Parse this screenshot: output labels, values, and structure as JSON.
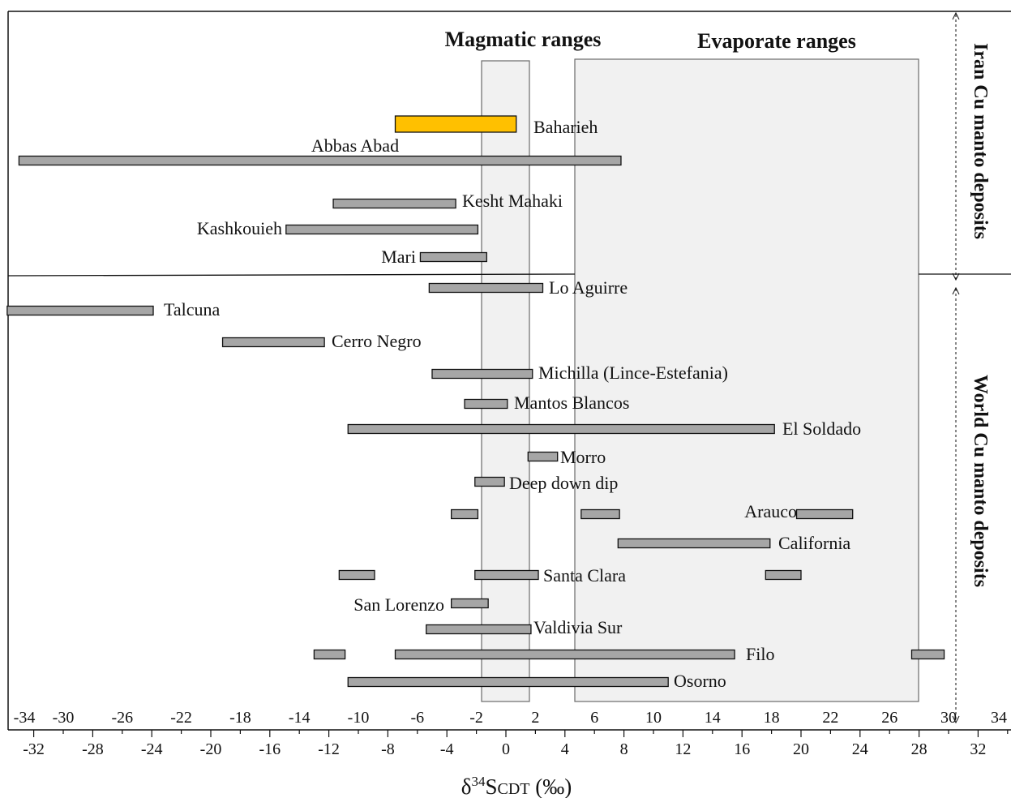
{
  "chart_data": {
    "type": "bar",
    "subtype": "floating-range",
    "xlabel_prefix": "δ",
    "xlabel_sup": "34",
    "xlabel_main": "S",
    "xlabel_sub": "CDT",
    "xlabel_unit": " (‰)",
    "xlim": [
      -34,
      34
    ],
    "upper_ticks": [
      "-34",
      "-30",
      "-26",
      "-22",
      "-18",
      "-14",
      "-10",
      "-6",
      "-2",
      "2",
      "6",
      "10",
      "14",
      "18",
      "22",
      "26",
      "30",
      "34"
    ],
    "lower_ticks": [
      "-32",
      "-28",
      "-24",
      "-20",
      "-16",
      "-12",
      "-8",
      "-4",
      "0",
      "4",
      "8",
      "12",
      "16",
      "20",
      "24",
      "28",
      "32"
    ],
    "shaded_ranges": [
      {
        "label": "Magmatic ranges",
        "from": -1.7,
        "to": 1.6
      },
      {
        "label": "Evaporate ranges",
        "from": 4.7,
        "to": 28.2
      }
    ],
    "groups": [
      {
        "label": "Iran Cu manto deposits"
      },
      {
        "label": "World Cu manto deposits"
      }
    ],
    "colors": {
      "highlight": "#FFC000",
      "bar": "#A6A6A6",
      "shade": "#F1F1F1"
    },
    "series": [
      {
        "name": "Baharieh",
        "group": 0,
        "highlight": true,
        "ranges": [
          [
            -7.5,
            0.7
          ]
        ]
      },
      {
        "name": "Abbas Abad",
        "group": 0,
        "ranges": [
          [
            -33.0,
            7.8
          ]
        ]
      },
      {
        "name": "Kesht Mahaki",
        "group": 0,
        "ranges": [
          [
            -11.7,
            -3.4
          ]
        ]
      },
      {
        "name": "Kashkouieh",
        "group": 0,
        "ranges": [
          [
            -14.9,
            -1.9
          ]
        ]
      },
      {
        "name": "Mari",
        "group": 0,
        "ranges": [
          [
            -5.8,
            -1.3
          ]
        ]
      },
      {
        "name": "Lo Aguirre",
        "group": 1,
        "ranges": [
          [
            -5.2,
            2.5
          ]
        ]
      },
      {
        "name": "Talcuna",
        "group": 1,
        "ranges": [
          [
            -33.8,
            -23.9
          ]
        ]
      },
      {
        "name": "Cerro Negro",
        "group": 1,
        "ranges": [
          [
            -19.2,
            -12.3
          ]
        ]
      },
      {
        "name": "Michilla (Lince-Estefania)",
        "group": 1,
        "ranges": [
          [
            -5.0,
            1.8
          ]
        ]
      },
      {
        "name": "Mantos Blancos",
        "group": 1,
        "ranges": [
          [
            -2.8,
            0.1
          ]
        ]
      },
      {
        "name": "El Soldado",
        "group": 1,
        "ranges": [
          [
            -10.7,
            18.2
          ]
        ]
      },
      {
        "name": "Morro",
        "group": 1,
        "ranges": [
          [
            1.5,
            3.5
          ]
        ]
      },
      {
        "name": "Deep down dip",
        "group": 1,
        "ranges": [
          [
            -2.1,
            -0.1
          ]
        ]
      },
      {
        "name": "Arauco",
        "group": 1,
        "ranges": [
          [
            -3.7,
            -1.9
          ],
          [
            5.1,
            7.7
          ],
          [
            19.7,
            23.5
          ]
        ]
      },
      {
        "name": "California",
        "group": 1,
        "ranges": [
          [
            7.6,
            17.9
          ]
        ]
      },
      {
        "name": "Santa Clara",
        "group": 1,
        "ranges": [
          [
            -11.3,
            -8.9
          ],
          [
            -2.1,
            2.2
          ],
          [
            17.6,
            20.0
          ]
        ]
      },
      {
        "name": "San Lorenzo",
        "group": 1,
        "ranges": [
          [
            -3.7,
            -1.2
          ]
        ]
      },
      {
        "name": "Valdivia Sur",
        "group": 1,
        "ranges": [
          [
            -5.4,
            1.7
          ]
        ]
      },
      {
        "name": "Filo",
        "group": 1,
        "ranges": [
          [
            -13.0,
            -10.9
          ],
          [
            -7.5,
            15.5
          ],
          [
            27.5,
            29.7
          ]
        ]
      },
      {
        "name": "Osorno",
        "group": 1,
        "ranges": [
          [
            -10.7,
            11.0
          ]
        ]
      }
    ]
  }
}
